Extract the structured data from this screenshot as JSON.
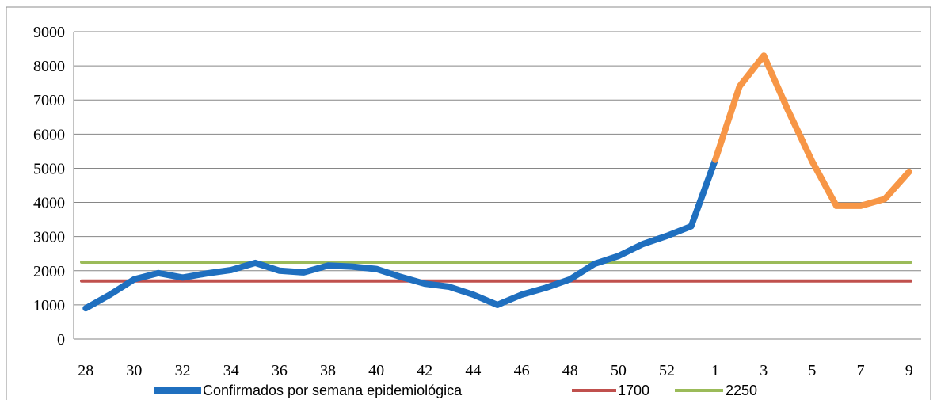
{
  "chart_data": {
    "type": "line",
    "title": "",
    "xlabel": "",
    "ylabel": "",
    "ylim": [
      0,
      9000
    ],
    "yticks": [
      "0",
      "1000",
      "2000",
      "3000",
      "4000",
      "5000",
      "6000",
      "7000",
      "8000",
      "9000"
    ],
    "categories": [
      "28",
      "29",
      "30",
      "31",
      "32",
      "33",
      "34",
      "35",
      "36",
      "37",
      "38",
      "39",
      "40",
      "41",
      "42",
      "43",
      "44",
      "45",
      "46",
      "47",
      "48",
      "49",
      "50",
      "51",
      "52",
      "53",
      "1",
      "2",
      "3",
      "4",
      "5",
      "6",
      "7",
      "8",
      "9"
    ],
    "xtick_labels": [
      "28",
      "",
      "30",
      "",
      "32",
      "",
      "34",
      "",
      "36",
      "",
      "38",
      "",
      "40",
      "",
      "42",
      "",
      "44",
      "",
      "46",
      "",
      "48",
      "",
      "50",
      "",
      "52",
      "",
      "1",
      "",
      "3",
      "",
      "5",
      "",
      "7",
      "",
      "9"
    ],
    "grid": "horizontal",
    "legend_position": "bottom",
    "series": [
      {
        "name": "Confirmados por semana epidemiológica",
        "color": "#1f6fbf",
        "values": [
          900,
          1300,
          1750,
          1930,
          1800,
          1920,
          2020,
          2230,
          2000,
          1950,
          2150,
          2120,
          2050,
          1820,
          1620,
          1530,
          1300,
          1000,
          1300,
          1500,
          1750,
          2200,
          2430,
          2780,
          3020,
          3300,
          5250,
          null,
          null,
          null,
          null,
          null,
          null,
          null,
          null
        ]
      },
      {
        "name": "",
        "color": "#f79646",
        "values": [
          null,
          null,
          null,
          null,
          null,
          null,
          null,
          null,
          null,
          null,
          null,
          null,
          null,
          null,
          null,
          null,
          null,
          null,
          null,
          null,
          null,
          null,
          null,
          null,
          null,
          null,
          5250,
          7400,
          8300,
          6700,
          5200,
          3900,
          3900,
          4100,
          4900
        ]
      },
      {
        "name": "1700",
        "color": "#c0504d",
        "values": [
          1700,
          1700,
          1700,
          1700,
          1700,
          1700,
          1700,
          1700,
          1700,
          1700,
          1700,
          1700,
          1700,
          1700,
          1700,
          1700,
          1700,
          1700,
          1700,
          1700,
          1700,
          1700,
          1700,
          1700,
          1700,
          1700,
          1700,
          1700,
          1700,
          1700,
          1700,
          1700,
          1700,
          1700,
          1700
        ]
      },
      {
        "name": "2250",
        "color": "#9bbb59",
        "values": [
          2250,
          2250,
          2250,
          2250,
          2250,
          2250,
          2250,
          2250,
          2250,
          2250,
          2250,
          2250,
          2250,
          2250,
          2250,
          2250,
          2250,
          2250,
          2250,
          2250,
          2250,
          2250,
          2250,
          2250,
          2250,
          2250,
          2250,
          2250,
          2250,
          2250,
          2250,
          2250,
          2250,
          2250,
          2250
        ]
      }
    ]
  }
}
